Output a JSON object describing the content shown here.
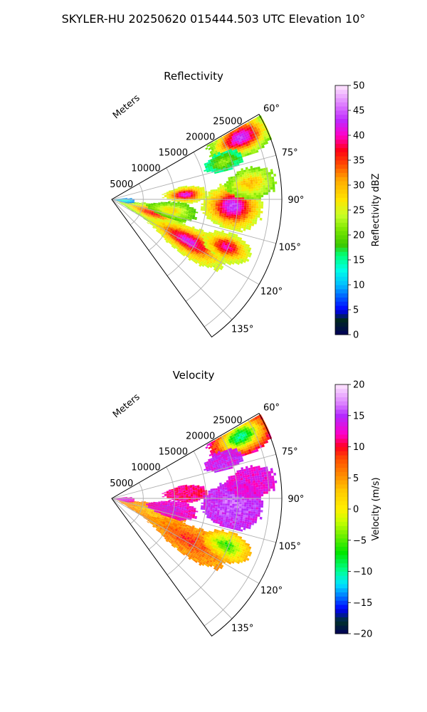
{
  "suptitle": "SKYLER-HU  20250620  015444.503 UTC Elevation 10°",
  "chart_data": [
    {
      "type": "heatmap",
      "projection": "polar-sector",
      "title": "Reflectivity",
      "range_label": "Meters",
      "range_max": 27000,
      "range_ticks": [
        5000,
        10000,
        15000,
        20000,
        25000
      ],
      "range_tick_labels": [
        "5000",
        "10000",
        "15000",
        "20000",
        "25000"
      ],
      "azimuth_range": [
        60,
        144
      ],
      "azimuth_ticks": [
        60,
        75,
        90,
        105,
        120,
        135
      ],
      "azimuth_tick_labels": [
        "60°",
        "75°",
        "90°",
        "105°",
        "120°",
        "135°"
      ],
      "grid": true,
      "colorbar": {
        "label": "Reflectivity dBZ",
        "vmin": 0,
        "vmax": 50,
        "ticks": [
          0,
          5,
          10,
          15,
          20,
          25,
          30,
          35,
          40,
          45,
          50
        ],
        "tick_labels": [
          "0",
          "5",
          "10",
          "15",
          "20",
          "25",
          "30",
          "35",
          "40",
          "45",
          "50"
        ],
        "placement": "right"
      },
      "cells": [
        {
          "az": 64,
          "r": 22500,
          "daz": 5,
          "dr": 3500,
          "peak": 44,
          "base": 18
        },
        {
          "az": 71,
          "r": 18500,
          "daz": 3,
          "dr": 2000,
          "peak": 22,
          "base": 14
        },
        {
          "az": 86,
          "r": 11500,
          "daz": 4,
          "dr": 2200,
          "peak": 42,
          "base": 22
        },
        {
          "az": 93,
          "r": 19000,
          "daz": 7,
          "dr": 3000,
          "peak": 44,
          "base": 22
        },
        {
          "az": 83,
          "r": 22000,
          "daz": 4,
          "dr": 2500,
          "peak": 30,
          "base": 20
        },
        {
          "az": 108,
          "r": 6500,
          "daz": 8,
          "dr": 3500,
          "peak": 36,
          "base": 20
        },
        {
          "az": 118,
          "r": 13500,
          "daz": 6,
          "dr": 4500,
          "peak": 42,
          "base": 22
        },
        {
          "az": 112,
          "r": 19500,
          "daz": 4,
          "dr": 2500,
          "peak": 40,
          "base": 22
        },
        {
          "az": 100,
          "r": 9500,
          "daz": 5,
          "dr": 2500,
          "peak": 28,
          "base": 18
        },
        {
          "az": 94,
          "r": 1500,
          "daz": 6,
          "dr": 1300,
          "peak": 14,
          "base": 8
        }
      ]
    },
    {
      "type": "heatmap",
      "projection": "polar-sector",
      "title": "Velocity",
      "range_label": "Meters",
      "range_max": 27000,
      "range_ticks": [
        5000,
        10000,
        15000,
        20000,
        25000
      ],
      "range_tick_labels": [
        "5000",
        "10000",
        "15000",
        "20000",
        "25000"
      ],
      "azimuth_range": [
        60,
        144
      ],
      "azimuth_ticks": [
        60,
        75,
        90,
        105,
        120,
        135
      ],
      "azimuth_tick_labels": [
        "60°",
        "75°",
        "90°",
        "105°",
        "120°",
        "135°"
      ],
      "grid": true,
      "colorbar": {
        "label": "Velocity (m/s)",
        "vmin": -20,
        "vmax": 20,
        "ticks": [
          -20,
          -15,
          -10,
          -5,
          0,
          5,
          10,
          15,
          20
        ],
        "tick_labels": [
          "−20",
          "−15",
          "−10",
          "−5",
          "0",
          "5",
          "10",
          "15",
          "20"
        ],
        "placement": "right"
      },
      "cells": [
        {
          "az": 64,
          "r": 22500,
          "daz": 5,
          "dr": 3500,
          "peak": -10,
          "base": 14
        },
        {
          "az": 71,
          "r": 18500,
          "daz": 3,
          "dr": 2000,
          "peak": 14,
          "base": 14
        },
        {
          "az": 86,
          "r": 11500,
          "daz": 4,
          "dr": 2200,
          "peak": 11,
          "base": 11
        },
        {
          "az": 93,
          "r": 19000,
          "daz": 7,
          "dr": 3000,
          "peak": 16,
          "base": 14
        },
        {
          "az": 83,
          "r": 22000,
          "daz": 4,
          "dr": 2500,
          "peak": 13,
          "base": 13
        },
        {
          "az": 108,
          "r": 6500,
          "daz": 8,
          "dr": 3500,
          "peak": 3,
          "base": 6
        },
        {
          "az": 118,
          "r": 13500,
          "daz": 6,
          "dr": 4500,
          "peak": 9,
          "base": 4
        },
        {
          "az": 112,
          "r": 19500,
          "daz": 4,
          "dr": 2500,
          "peak": -6,
          "base": 4
        },
        {
          "az": 100,
          "r": 9500,
          "daz": 5,
          "dr": 2500,
          "peak": 14,
          "base": 12
        },
        {
          "az": 94,
          "r": 1500,
          "daz": 6,
          "dr": 1300,
          "peak": 14,
          "base": 12
        }
      ]
    }
  ]
}
